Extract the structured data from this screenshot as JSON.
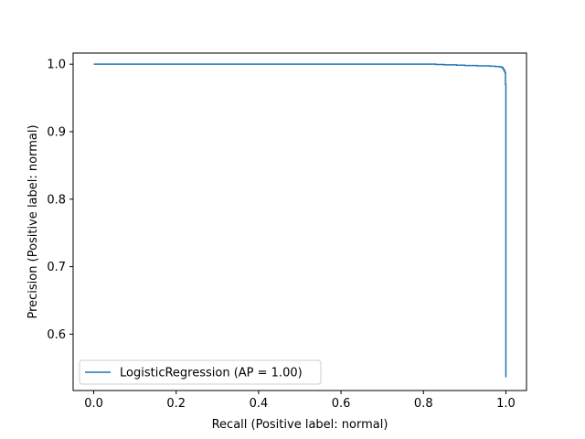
{
  "chart_data": {
    "type": "line",
    "title": "",
    "xlabel": "Recall (Positive label: normal)",
    "ylabel": "Precision (Positive label: normal)",
    "xlim": [
      -0.05,
      1.05
    ],
    "ylim": [
      0.5165,
      1.0165
    ],
    "xticks": [
      0.0,
      0.2,
      0.4,
      0.6,
      0.8,
      1.0
    ],
    "xtick_labels": [
      "0.0",
      "0.2",
      "0.4",
      "0.6",
      "0.8",
      "1.0"
    ],
    "yticks": [
      0.6,
      0.7,
      0.8,
      0.9,
      1.0
    ],
    "ytick_labels": [
      "0.6",
      "0.7",
      "0.8",
      "0.9",
      "1.0"
    ],
    "grid": false,
    "legend_position": "lower-left",
    "series": [
      {
        "name": "LogisticRegression (AP = 1.00)",
        "color": "#1f77b4",
        "x": [
          0.0,
          0.8,
          0.83,
          0.85,
          0.88,
          0.9,
          0.93,
          0.96,
          0.975,
          0.985,
          0.99,
          0.993,
          0.995,
          0.997,
          0.998,
          0.999,
          0.999,
          1.0,
          1.0,
          1.0
        ],
        "y": [
          1.0,
          1.0,
          0.9995,
          0.999,
          0.9985,
          0.998,
          0.9975,
          0.997,
          0.9965,
          0.996,
          0.995,
          0.993,
          0.991,
          0.989,
          0.987,
          0.985,
          0.97,
          0.945,
          0.8,
          0.536
        ]
      }
    ]
  }
}
